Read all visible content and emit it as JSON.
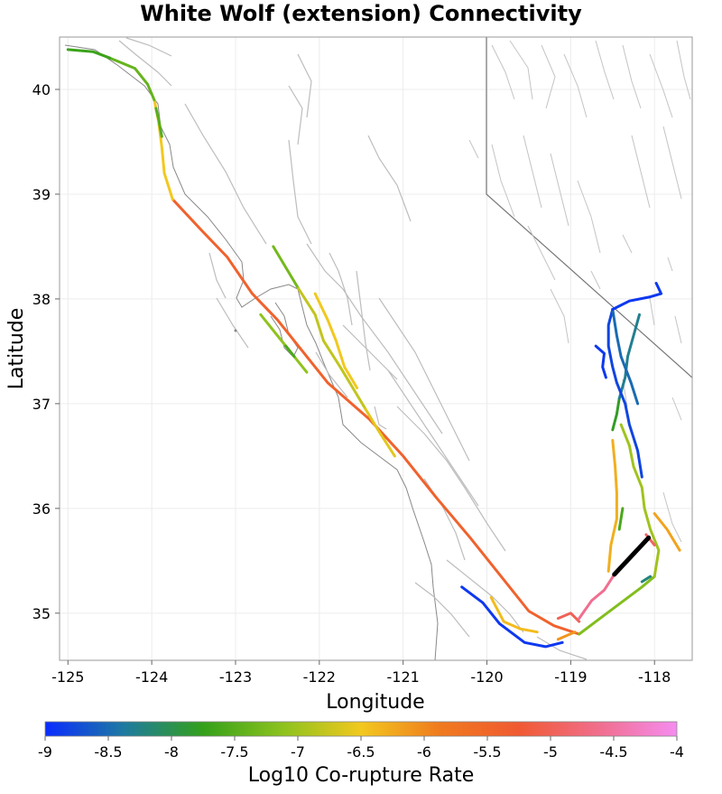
{
  "title": "White Wolf (extension) Connectivity",
  "chart_data": {
    "type": "map",
    "xlabel": "Longitude",
    "ylabel": "Latitude",
    "xlim": [
      -125.1,
      -117.55
    ],
    "ylim": [
      34.55,
      40.5
    ],
    "x_ticks": [
      "-125",
      "-124",
      "-123",
      "-122",
      "-121",
      "-120",
      "-119",
      "-118"
    ],
    "y_ticks": [
      "35",
      "36",
      "37",
      "38",
      "39",
      "40"
    ],
    "grid": true,
    "colorbar": {
      "label": "Log10 Co-rupture Rate",
      "range": [
        -9,
        -4
      ],
      "ticks": [
        "-9",
        "-8.5",
        "-8",
        "-7.5",
        "-7",
        "-6.5",
        "-6",
        "-5.5",
        "-5",
        "-4.5",
        "-4"
      ],
      "stops": [
        "#0a2cff",
        "#1e7aa0",
        "#34a01a",
        "#8cc21e",
        "#f2c81e",
        "#f07a1e",
        "#f05a32",
        "#f06e8c",
        "#f58cf0"
      ]
    },
    "source_fault": {
      "name": "White Wolf (extension)",
      "color": "#000000",
      "path": [
        [
          -118.48,
          35.37
        ],
        [
          -118.07,
          35.72
        ]
      ]
    },
    "fault_traces": [
      {
        "log_rate": -5.4,
        "path": [
          [
            -123.75,
            38.95
          ],
          [
            -123.4,
            38.65
          ],
          [
            -123.1,
            38.4
          ],
          [
            -122.8,
            38.05
          ],
          [
            -122.5,
            37.8
          ],
          [
            -122.2,
            37.5
          ],
          [
            -121.9,
            37.2
          ],
          [
            -121.4,
            36.85
          ],
          [
            -121.0,
            36.5
          ],
          [
            -120.6,
            36.1
          ],
          [
            -120.2,
            35.72
          ],
          [
            -119.8,
            35.32
          ],
          [
            -119.5,
            35.02
          ],
          [
            -119.2,
            34.88
          ],
          [
            -118.9,
            34.8
          ]
        ]
      },
      {
        "log_rate": -6.5,
        "path": [
          [
            -123.75,
            38.95
          ],
          [
            -123.85,
            39.2
          ],
          [
            -123.88,
            39.45
          ],
          [
            -123.92,
            39.7
          ],
          [
            -123.97,
            39.9
          ]
        ]
      },
      {
        "log_rate": -7.4,
        "path": [
          [
            -123.97,
            39.9
          ],
          [
            -124.05,
            40.05
          ],
          [
            -124.2,
            40.2
          ],
          [
            -124.5,
            40.3
          ]
        ]
      },
      {
        "log_rate": -7.7,
        "path": [
          [
            -124.5,
            40.3
          ],
          [
            -124.7,
            40.36
          ],
          [
            -125.0,
            40.38
          ]
        ]
      },
      {
        "log_rate": -7.5,
        "path": [
          [
            -123.88,
            39.55
          ],
          [
            -123.92,
            39.72
          ],
          [
            -123.95,
            39.82
          ]
        ]
      },
      {
        "log_rate": -7.3,
        "path": [
          [
            -122.55,
            38.5
          ],
          [
            -122.4,
            38.3
          ],
          [
            -122.25,
            38.1
          ]
        ]
      },
      {
        "log_rate": -6.8,
        "path": [
          [
            -122.25,
            38.1
          ],
          [
            -122.05,
            37.85
          ],
          [
            -121.95,
            37.6
          ],
          [
            -121.75,
            37.35
          ],
          [
            -121.6,
            37.15
          ],
          [
            -121.45,
            36.95
          ]
        ]
      },
      {
        "log_rate": -6.6,
        "path": [
          [
            -121.45,
            36.95
          ],
          [
            -121.3,
            36.75
          ],
          [
            -121.1,
            36.5
          ]
        ]
      },
      {
        "log_rate": -6.5,
        "path": [
          [
            -122.05,
            38.05
          ],
          [
            -121.9,
            37.8
          ],
          [
            -121.8,
            37.6
          ],
          [
            -121.7,
            37.35
          ],
          [
            -121.55,
            37.15
          ]
        ]
      },
      {
        "log_rate": -7.1,
        "path": [
          [
            -122.7,
            37.85
          ],
          [
            -122.5,
            37.65
          ],
          [
            -122.3,
            37.45
          ],
          [
            -122.15,
            37.3
          ]
        ]
      },
      {
        "log_rate": -7.6,
        "path": [
          [
            -122.4,
            37.55
          ],
          [
            -122.3,
            37.45
          ]
        ]
      },
      {
        "log_rate": -8.9,
        "path": [
          [
            -120.3,
            35.25
          ],
          [
            -120.05,
            35.1
          ],
          [
            -119.85,
            34.9
          ],
          [
            -119.55,
            34.72
          ],
          [
            -119.3,
            34.68
          ],
          [
            -119.1,
            34.72
          ]
        ]
      },
      {
        "log_rate": -6.4,
        "path": [
          [
            -119.95,
            35.15
          ],
          [
            -119.8,
            34.92
          ],
          [
            -119.6,
            34.85
          ],
          [
            -119.4,
            34.82
          ]
        ]
      },
      {
        "log_rate": -6.1,
        "path": [
          [
            -119.15,
            34.75
          ],
          [
            -118.95,
            34.82
          ]
        ]
      },
      {
        "log_rate": -5.0,
        "path": [
          [
            -119.15,
            34.95
          ],
          [
            -119.0,
            35.0
          ],
          [
            -118.9,
            34.92
          ]
        ]
      },
      {
        "log_rate": -4.6,
        "path": [
          [
            -118.9,
            34.95
          ],
          [
            -118.75,
            35.12
          ],
          [
            -118.6,
            35.22
          ],
          [
            -118.48,
            35.37
          ]
        ]
      },
      {
        "log_rate": -7.2,
        "path": [
          [
            -118.9,
            34.8
          ],
          [
            -118.65,
            34.95
          ],
          [
            -118.4,
            35.1
          ],
          [
            -118.15,
            35.25
          ],
          [
            -118.0,
            35.35
          ]
        ]
      },
      {
        "log_rate": -7.0,
        "path": [
          [
            -118.0,
            35.35
          ],
          [
            -117.95,
            35.6
          ],
          [
            -118.05,
            35.8
          ],
          [
            -118.12,
            36.0
          ],
          [
            -118.15,
            36.2
          ],
          [
            -118.25,
            36.4
          ],
          [
            -118.3,
            36.6
          ],
          [
            -118.4,
            36.8
          ]
        ]
      },
      {
        "log_rate": -6.3,
        "path": [
          [
            -118.55,
            35.4
          ],
          [
            -118.52,
            35.65
          ],
          [
            -118.45,
            35.9
          ],
          [
            -118.45,
            36.15
          ],
          [
            -118.47,
            36.4
          ],
          [
            -118.5,
            36.65
          ]
        ]
      },
      {
        "log_rate": -7.6,
        "path": [
          [
            -118.42,
            35.8
          ],
          [
            -118.38,
            36.0
          ]
        ]
      },
      {
        "log_rate": -6.2,
        "path": [
          [
            -118.0,
            35.95
          ],
          [
            -117.85,
            35.8
          ],
          [
            -117.7,
            35.6
          ]
        ]
      },
      {
        "log_rate": -4.9,
        "path": [
          [
            -118.1,
            35.75
          ],
          [
            -118.0,
            35.65
          ]
        ]
      },
      {
        "log_rate": -7.8,
        "path": [
          [
            -118.5,
            36.75
          ],
          [
            -118.45,
            36.9
          ],
          [
            -118.42,
            37.05
          ]
        ]
      },
      {
        "log_rate": -8.3,
        "path": [
          [
            -118.42,
            37.05
          ],
          [
            -118.35,
            37.25
          ],
          [
            -118.32,
            37.45
          ],
          [
            -118.25,
            37.65
          ],
          [
            -118.18,
            37.85
          ]
        ]
      },
      {
        "log_rate": -8.8,
        "path": [
          [
            -118.15,
            36.3
          ],
          [
            -118.2,
            36.55
          ],
          [
            -118.3,
            36.8
          ],
          [
            -118.35,
            37.0
          ],
          [
            -118.45,
            37.2
          ],
          [
            -118.5,
            37.35
          ],
          [
            -118.55,
            37.55
          ],
          [
            -118.55,
            37.75
          ],
          [
            -118.5,
            37.9
          ]
        ]
      },
      {
        "log_rate": -8.5,
        "path": [
          [
            -118.5,
            37.9
          ],
          [
            -118.45,
            37.65
          ],
          [
            -118.4,
            37.45
          ],
          [
            -118.28,
            37.2
          ],
          [
            -118.2,
            37.0
          ]
        ]
      },
      {
        "log_rate": -8.9,
        "path": [
          [
            -118.5,
            37.9
          ],
          [
            -118.3,
            37.98
          ],
          [
            -118.05,
            38.02
          ],
          [
            -117.92,
            38.05
          ],
          [
            -117.98,
            38.15
          ]
        ]
      },
      {
        "log_rate": -8.9,
        "path": [
          [
            -118.7,
            37.55
          ],
          [
            -118.6,
            37.48
          ],
          [
            -118.62,
            37.35
          ],
          [
            -118.58,
            37.25
          ]
        ]
      },
      {
        "log_rate": -8.2,
        "path": [
          [
            -118.15,
            35.3
          ],
          [
            -118.05,
            35.35
          ]
        ]
      }
    ]
  }
}
